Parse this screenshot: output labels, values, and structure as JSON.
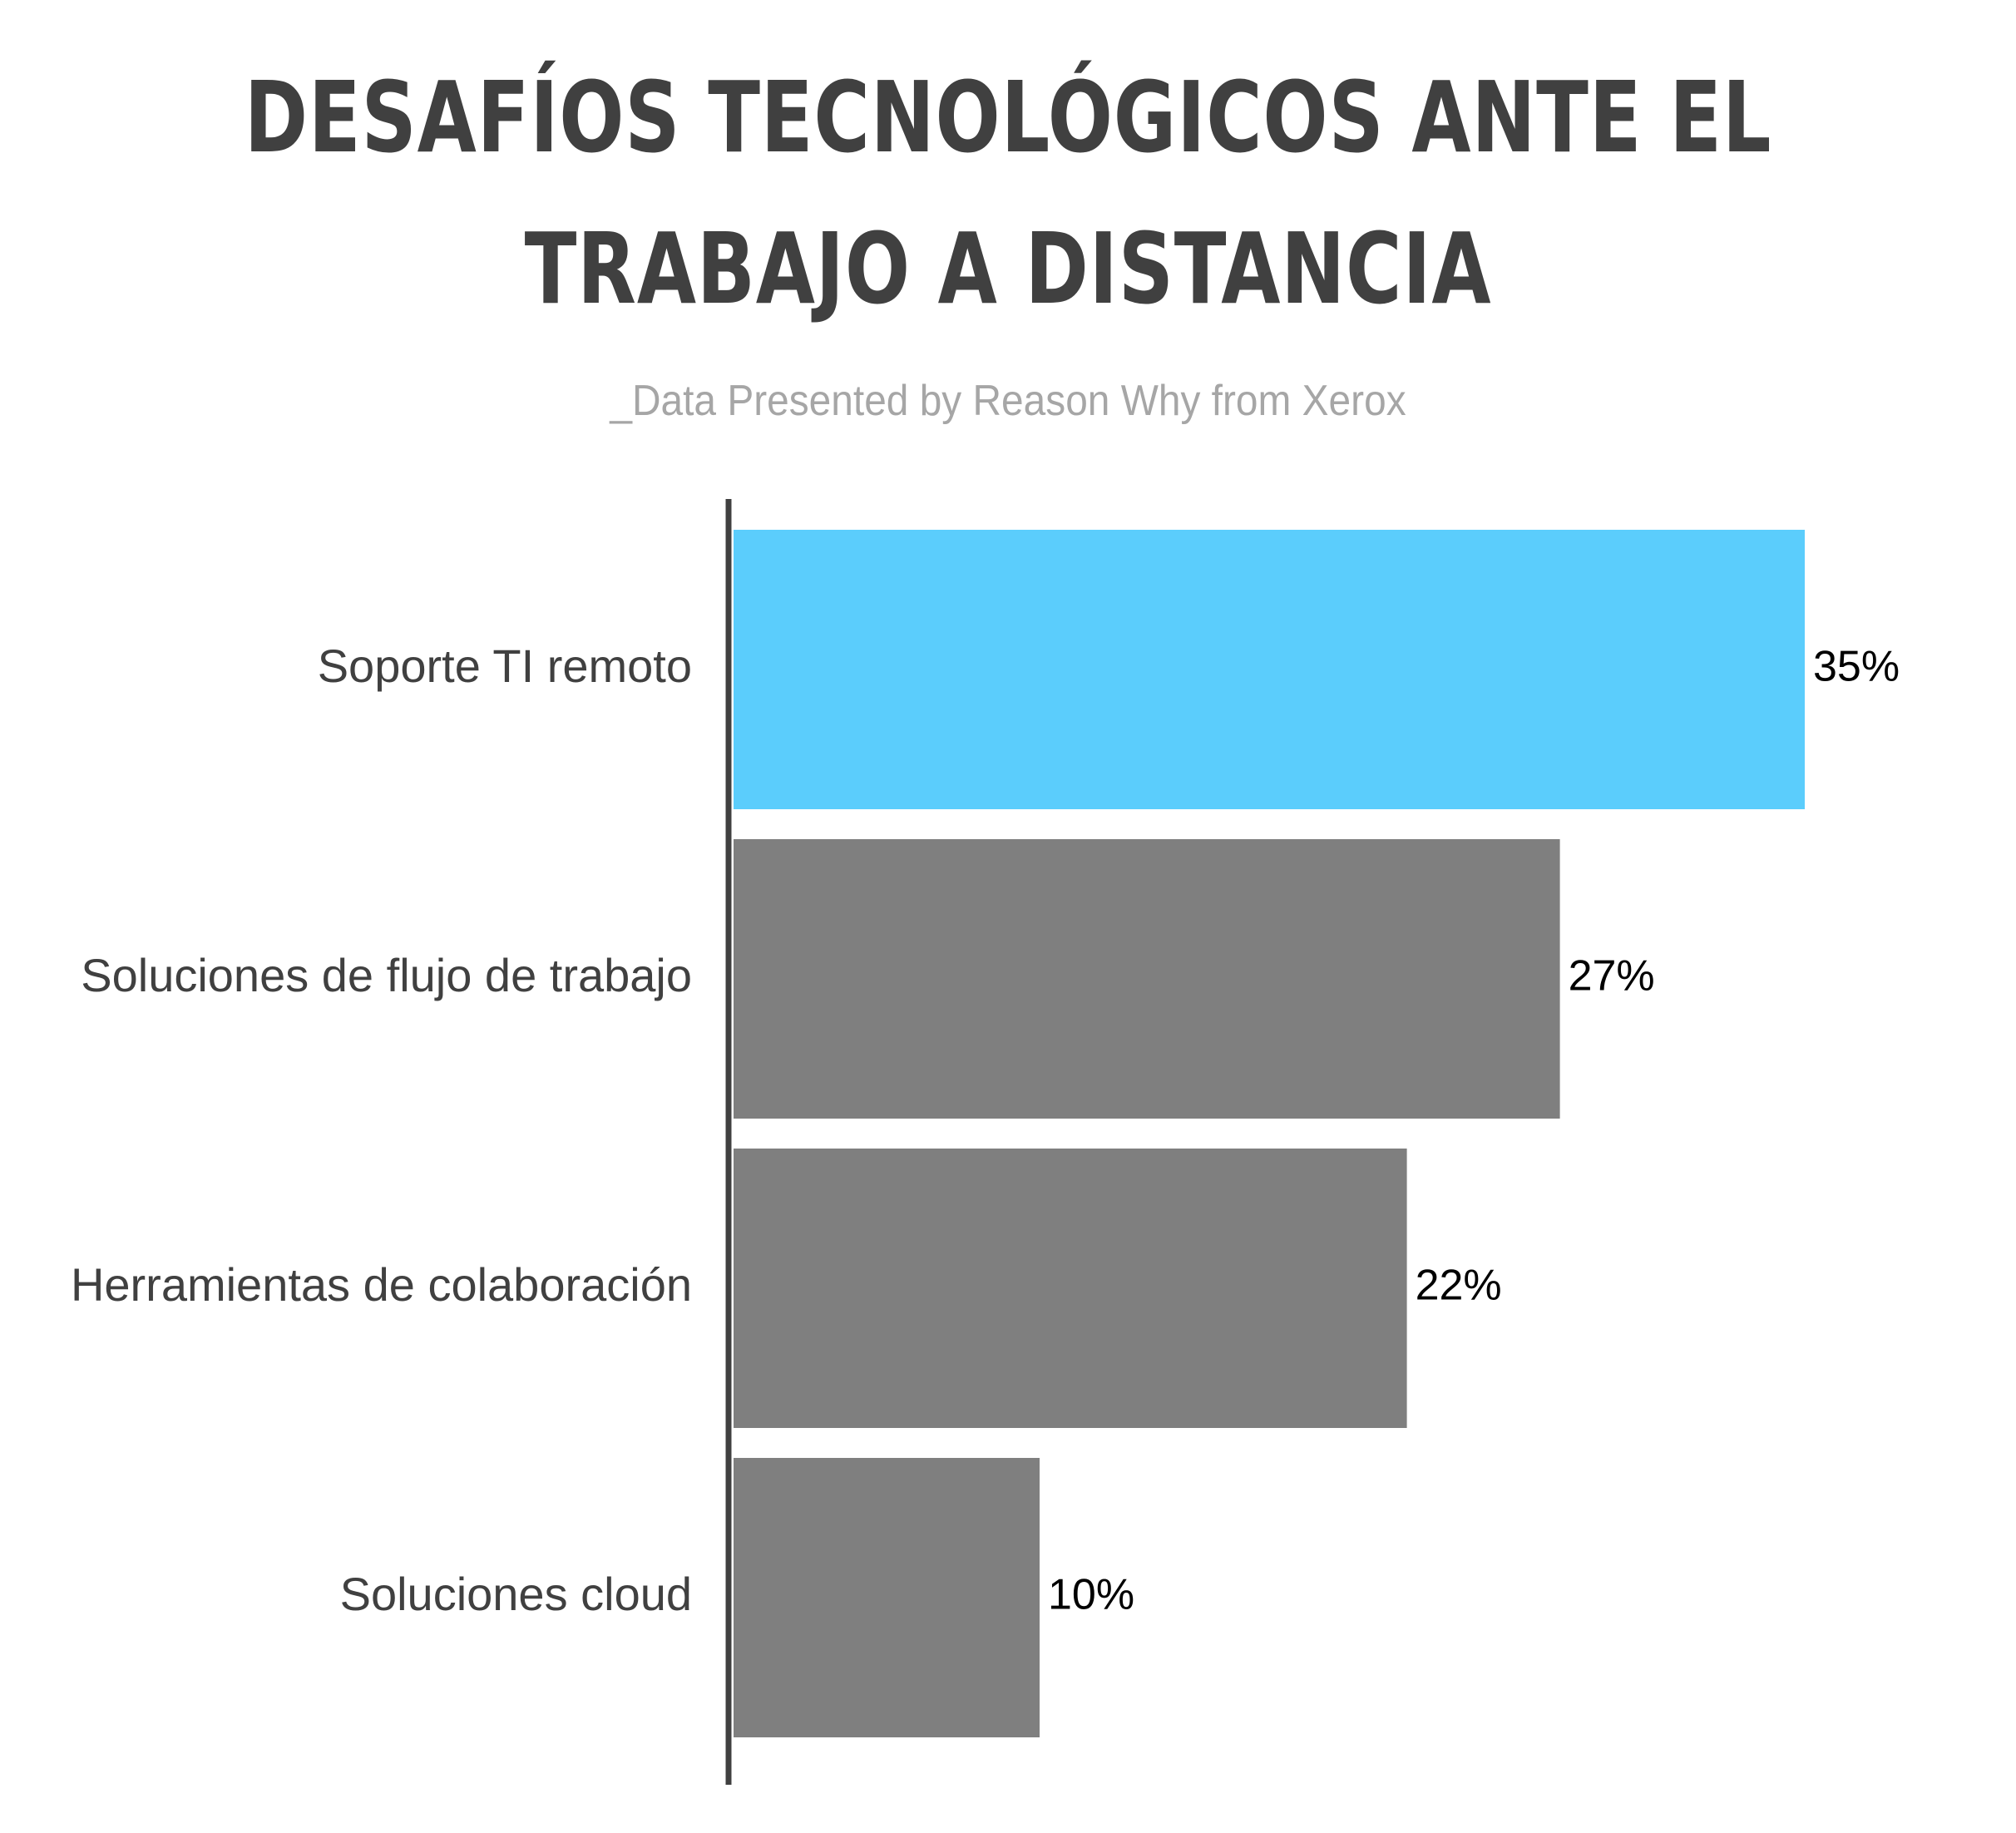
{
  "header": {
    "title_line1": "DESAFÍOS TECNOLÓGICOS ANTE EL",
    "title_line2": "TRABAJO A DISTANCIA",
    "subtitle": "_Data Presented by Reason Why from Xerox"
  },
  "colors": {
    "highlight": "#5bcdfc",
    "bar": "#7f7f7f",
    "axis": "#404040"
  },
  "chart_data": {
    "type": "bar",
    "orientation": "horizontal",
    "title": "DESAFÍOS TECNOLÓGICOS ANTE EL TRABAJO A DISTANCIA",
    "subtitle": "_Data Presented by Reason Why from Xerox",
    "categories": [
      "Soporte TI remoto",
      "Soluciones de flujo de trabajo",
      "Herramientas de colaboración",
      "Soluciones cloud"
    ],
    "values": [
      35,
      27,
      22,
      10
    ],
    "value_labels": [
      "35%",
      "27%",
      "22%",
      "10%"
    ],
    "unit": "%",
    "highlighted_index": 0,
    "xlim": [
      0,
      35
    ],
    "grid": false,
    "legend": "none"
  }
}
